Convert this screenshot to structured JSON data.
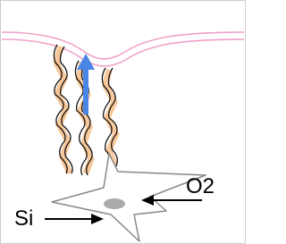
{
  "labels": [
    {
      "text": "O2"
    },
    {
      "text": "Si"
    }
  ]
}
